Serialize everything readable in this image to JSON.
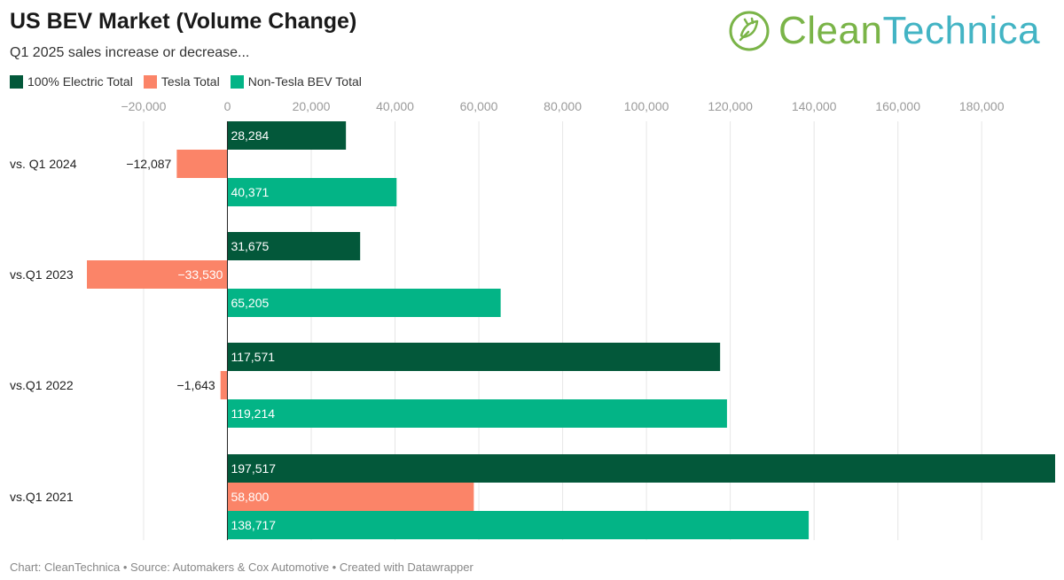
{
  "chart_data": {
    "type": "bar",
    "orientation": "horizontal",
    "title": "US BEV Market (Volume Change)",
    "subtitle": "Q1 2025 sales increase or decrease...",
    "categories": [
      "vs. Q1 2024",
      "vs.Q1 2023",
      "vs.Q1 2022",
      "vs.Q1 2021"
    ],
    "series": [
      {
        "name": "100% Electric Total",
        "color": "#03583a",
        "values": [
          28284,
          31675,
          117571,
          197517
        ],
        "labels": [
          "28,284",
          "31,675",
          "117,571",
          "197,517"
        ]
      },
      {
        "name": "Tesla Total",
        "color": "#fb8468",
        "values": [
          -12087,
          -33530,
          -1643,
          58800
        ],
        "labels": [
          "−12,087",
          "−33,530",
          "−1,643",
          "58,800"
        ]
      },
      {
        "name": "Non-Tesla BEV Total",
        "color": "#03b486",
        "values": [
          40371,
          65205,
          119214,
          138717
        ],
        "labels": [
          "40,371",
          "65,205",
          "119,214",
          "138,717"
        ]
      }
    ],
    "xticks": [
      -20000,
      0,
      20000,
      40000,
      60000,
      80000,
      100000,
      120000,
      140000,
      160000,
      180000
    ],
    "xtick_labels": [
      "−20,000",
      "0",
      "20,000",
      "40,000",
      "60,000",
      "80,000",
      "100,000",
      "120,000",
      "140,000",
      "160,000",
      "180,000"
    ],
    "xlim": [
      -33530,
      197517
    ],
    "grid": true,
    "legend_position": "top-left"
  },
  "footer": "Chart: CleanTechnica • Source: Automakers & Cox Automotive • Created with Datawrapper",
  "brand": {
    "part1": "Clean",
    "part2": "Technica",
    "icon": "plug-leaf-icon",
    "color1": "#7ab448",
    "color2": "#43b4c4"
  }
}
